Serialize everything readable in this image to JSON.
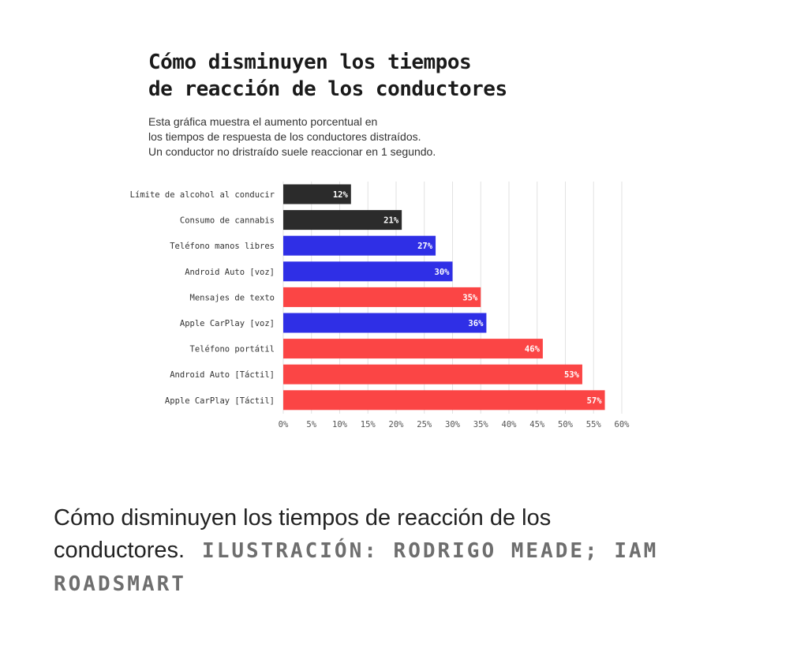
{
  "chart_data": {
    "type": "bar",
    "orientation": "horizontal",
    "title_lines": [
      "Cómo disminuyen los tiempos",
      "de reacción de los conductores"
    ],
    "subtitle_lines": [
      "Esta gráfica muestra el aumento porcentual en",
      "los tiempos de respuesta de los conductores distraídos.",
      "Un conductor no dristraído suele reaccionar en 1 segundo."
    ],
    "categories": [
      "Límite de alcohol al conducir",
      "Consumo de cannabis",
      "Teléfono manos libres",
      "Android Auto [voz]",
      "Mensajes de texto",
      "Apple CarPlay [voz]",
      "Teléfono portátil",
      "Android Auto [Táctil]",
      "Apple CarPlay [Táctil]"
    ],
    "values": [
      12,
      21,
      27,
      30,
      35,
      36,
      46,
      53,
      57
    ],
    "value_labels": [
      "12%",
      "21%",
      "27%",
      "30%",
      "35%",
      "36%",
      "46%",
      "53%",
      "57%"
    ],
    "bar_colors": [
      "#2b2b2b",
      "#2b2b2b",
      "#2f2fe6",
      "#2f2fe6",
      "#fb4545",
      "#2f2fe6",
      "#fb4545",
      "#fb4545",
      "#fb4545"
    ],
    "x_ticks": [
      0,
      5,
      10,
      15,
      20,
      25,
      30,
      35,
      40,
      45,
      50,
      55,
      60
    ],
    "x_tick_labels": [
      "0%",
      "5%",
      "10%",
      "15%",
      "20%",
      "25%",
      "30%",
      "35%",
      "40%",
      "45%",
      "50%",
      "55%",
      "60%"
    ],
    "xlim": [
      0,
      60
    ],
    "grid": true,
    "xlabel": "",
    "ylabel": ""
  },
  "caption": {
    "text": "Cómo disminuyen los tiempos de reacción de los conductores.",
    "credit": "ILUSTRACIÓN: RODRIGO MEADE; IAM ROADSMART"
  }
}
